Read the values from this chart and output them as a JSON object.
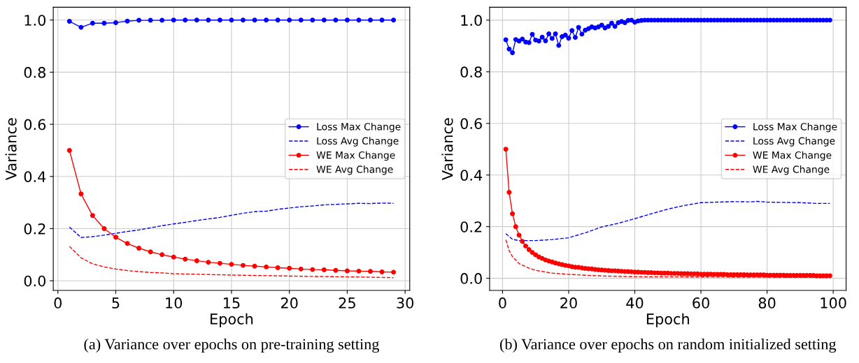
{
  "chart_data": [
    {
      "type": "line",
      "xlabel": "Epoch",
      "ylabel": "Variance",
      "xlim": [
        -0.4,
        30.4
      ],
      "xticks": [
        0,
        5,
        10,
        15,
        20,
        25,
        30
      ],
      "ylim": [
        -0.037,
        1.049
      ],
      "yticks": [
        {
          "value": 0,
          "label": "0.0"
        },
        {
          "value": 0.2,
          "label": "0.2"
        },
        {
          "value": 0.4,
          "label": "0.4"
        },
        {
          "value": 0.6,
          "label": "0.6"
        },
        {
          "value": 0.8,
          "label": "0.8"
        },
        {
          "value": 1,
          "label": "1.0"
        }
      ],
      "grid": true,
      "legend": "right",
      "annotations": [
        "(a) Variance over epochs on pre-training setting"
      ],
      "series": [
        {
          "name": "Loss Max Change",
          "color": "#0000ff",
          "marker": "circle",
          "line_style": "solid",
          "x": [
            1,
            2,
            3,
            4,
            5,
            6,
            7,
            8,
            9,
            10,
            11,
            12,
            13,
            14,
            15,
            16,
            17,
            18,
            19,
            20,
            21,
            22,
            23,
            24,
            25,
            26,
            27,
            28,
            29
          ],
          "values": [
            0.995,
            0.972,
            0.988,
            0.988,
            0.99,
            0.996,
            0.999,
            0.999,
            0.999,
            1,
            1,
            1,
            1,
            1,
            1,
            1,
            1,
            1,
            1,
            1,
            1,
            1,
            1,
            1,
            1,
            1,
            1,
            1,
            1
          ]
        },
        {
          "name": "Loss Avg Change",
          "color": "#0000ff",
          "marker": "none",
          "line_style": "dashed",
          "x": [
            1,
            2,
            3,
            4,
            5,
            6,
            7,
            8,
            9,
            10,
            11,
            12,
            13,
            14,
            15,
            16,
            17,
            18,
            19,
            20,
            21,
            22,
            23,
            24,
            25,
            26,
            27,
            28,
            29
          ],
          "values": [
            0.206,
            0.166,
            0.169,
            0.175,
            0.182,
            0.189,
            0.195,
            0.203,
            0.211,
            0.218,
            0.224,
            0.231,
            0.237,
            0.243,
            0.251,
            0.259,
            0.265,
            0.267,
            0.274,
            0.279,
            0.284,
            0.287,
            0.291,
            0.293,
            0.295,
            0.297,
            0.296,
            0.298,
            0.297
          ]
        },
        {
          "name": "WE Max Change",
          "color": "#ff0000",
          "marker": "circle",
          "line_style": "solid",
          "x": [
            1,
            2,
            3,
            4,
            5,
            6,
            7,
            8,
            9,
            10,
            11,
            12,
            13,
            14,
            15,
            16,
            17,
            18,
            19,
            20,
            21,
            22,
            23,
            24,
            25,
            26,
            27,
            28,
            29
          ],
          "values": [
            0.5,
            0.333,
            0.25,
            0.2,
            0.167,
            0.143,
            0.125,
            0.111,
            0.1,
            0.091,
            0.083,
            0.077,
            0.071,
            0.067,
            0.063,
            0.059,
            0.056,
            0.053,
            0.05,
            0.048,
            0.045,
            0.043,
            0.042,
            0.04,
            0.038,
            0.037,
            0.036,
            0.034,
            0.033
          ]
        },
        {
          "name": "WE Avg Change",
          "color": "#ff0000",
          "marker": "none",
          "line_style": "dashed",
          "x": [
            1,
            2,
            3,
            4,
            5,
            6,
            7,
            8,
            9,
            10,
            12,
            15,
            20,
            25,
            29
          ],
          "values": [
            0.132,
            0.088,
            0.065,
            0.053,
            0.045,
            0.039,
            0.035,
            0.032,
            0.03,
            0.027,
            0.025,
            0.022,
            0.018,
            0.015,
            0.012
          ]
        }
      ]
    },
    {
      "type": "line",
      "xlabel": "Epoch",
      "ylabel": "Variance",
      "xlim": [
        -3.9,
        103.9
      ],
      "xticks": [
        0,
        20,
        40,
        60,
        80,
        100
      ],
      "ylim": [
        -0.047,
        1.05
      ],
      "yticks": [
        {
          "value": 0,
          "label": "0.0"
        },
        {
          "value": 0.2,
          "label": "0.2"
        },
        {
          "value": 0.4,
          "label": "0.4"
        },
        {
          "value": 0.6,
          "label": "0.6"
        },
        {
          "value": 0.8,
          "label": "0.8"
        },
        {
          "value": 1,
          "label": "1.0"
        }
      ],
      "grid": true,
      "legend": "right",
      "annotations": [
        "(b) Variance over epochs on random initialized setting"
      ],
      "series": [
        {
          "name": "Loss Max Change",
          "color": "#0000ff",
          "marker": "circle",
          "line_style": "solid",
          "x": [
            1,
            2,
            3,
            4,
            5,
            6,
            7,
            8,
            9,
            10,
            11,
            12,
            13,
            14,
            15,
            16,
            17,
            18,
            19,
            20,
            21,
            22,
            23,
            24,
            25,
            26,
            27,
            28,
            29,
            30,
            31,
            32,
            33,
            34,
            35,
            36,
            37,
            38,
            39,
            40,
            41,
            42,
            43,
            44,
            45,
            46,
            47,
            48,
            49,
            50,
            51,
            52,
            53,
            54,
            55,
            56,
            57,
            58,
            59,
            60,
            61,
            62,
            63,
            64,
            65,
            66,
            67,
            68,
            69,
            70,
            71,
            72,
            73,
            74,
            75,
            76,
            77,
            78,
            79,
            80,
            81,
            82,
            83,
            84,
            85,
            86,
            87,
            88,
            89,
            90,
            91,
            92,
            93,
            94,
            95,
            96,
            97,
            98,
            99
          ],
          "values": [
            0.924,
            0.888,
            0.874,
            0.925,
            0.919,
            0.927,
            0.915,
            0.913,
            0.945,
            0.923,
            0.919,
            0.934,
            0.92,
            0.947,
            0.929,
            0.947,
            0.902,
            0.936,
            0.942,
            0.93,
            0.96,
            0.933,
            0.972,
            0.946,
            0.961,
            0.967,
            0.974,
            0.97,
            0.974,
            0.981,
            0.97,
            0.976,
            0.988,
            0.976,
            0.99,
            0.995,
            0.99,
            0.999,
            1,
            0.992,
            0.997,
            0.999,
            1,
            1,
            1,
            1,
            1,
            1,
            1,
            1,
            1,
            1,
            1,
            1,
            1,
            1,
            1,
            1,
            1,
            1,
            1,
            1,
            1,
            1,
            1,
            1,
            1,
            1,
            1,
            1,
            1,
            1,
            1,
            1,
            1,
            1,
            1,
            1,
            1,
            1,
            1,
            1,
            1,
            1,
            1,
            1,
            1,
            1,
            1,
            1,
            1,
            1,
            1,
            1,
            1,
            1,
            1,
            1,
            1
          ]
        },
        {
          "name": "Loss Avg Change",
          "color": "#0000ff",
          "marker": "none",
          "line_style": "dashed",
          "x": [
            1,
            3,
            5,
            10,
            15,
            20,
            25,
            30,
            35,
            40,
            45,
            50,
            55,
            60,
            65,
            70,
            75,
            77,
            80,
            85,
            90,
            95,
            99
          ],
          "values": [
            0.173,
            0.151,
            0.146,
            0.146,
            0.15,
            0.157,
            0.176,
            0.199,
            0.213,
            0.231,
            0.25,
            0.268,
            0.282,
            0.293,
            0.295,
            0.297,
            0.296,
            0.298,
            0.295,
            0.294,
            0.293,
            0.29,
            0.29
          ]
        },
        {
          "name": "WE Max Change",
          "color": "#ff0000",
          "marker": "circle",
          "line_style": "solid",
          "x": [
            1,
            2,
            3,
            4,
            5,
            6,
            7,
            8,
            9,
            10,
            11,
            12,
            13,
            14,
            15,
            16,
            17,
            18,
            19,
            20,
            21,
            22,
            23,
            24,
            25,
            26,
            27,
            28,
            29,
            30,
            31,
            32,
            33,
            34,
            35,
            36,
            37,
            38,
            39,
            40,
            41,
            42,
            43,
            44,
            45,
            46,
            47,
            48,
            49,
            50,
            51,
            52,
            53,
            54,
            55,
            56,
            57,
            58,
            59,
            60,
            61,
            62,
            63,
            64,
            65,
            66,
            67,
            68,
            69,
            70,
            71,
            72,
            73,
            74,
            75,
            76,
            77,
            78,
            79,
            80,
            81,
            82,
            83,
            84,
            85,
            86,
            87,
            88,
            89,
            90,
            91,
            92,
            93,
            94,
            95,
            96,
            97,
            98,
            99
          ],
          "values": [
            0.5,
            0.333,
            0.25,
            0.2,
            0.167,
            0.143,
            0.125,
            0.111,
            0.1,
            0.091,
            0.083,
            0.077,
            0.071,
            0.067,
            0.063,
            0.059,
            0.056,
            0.053,
            0.05,
            0.048,
            0.045,
            0.043,
            0.042,
            0.04,
            0.038,
            0.037,
            0.036,
            0.034,
            0.033,
            0.032,
            0.031,
            0.03,
            0.029,
            0.029,
            0.028,
            0.027,
            0.026,
            0.026,
            0.025,
            0.024,
            0.024,
            0.023,
            0.023,
            0.022,
            0.022,
            0.021,
            0.021,
            0.02,
            0.02,
            0.02,
            0.019,
            0.019,
            0.019,
            0.018,
            0.018,
            0.018,
            0.017,
            0.017,
            0.017,
            0.016,
            0.016,
            0.016,
            0.016,
            0.015,
            0.015,
            0.015,
            0.015,
            0.014,
            0.014,
            0.014,
            0.014,
            0.014,
            0.014,
            0.013,
            0.013,
            0.013,
            0.013,
            0.013,
            0.013,
            0.012,
            0.012,
            0.012,
            0.012,
            0.012,
            0.012,
            0.011,
            0.011,
            0.011,
            0.011,
            0.011,
            0.011,
            0.011,
            0.011,
            0.011,
            0.01,
            0.01,
            0.01,
            0.01,
            0.01
          ]
        },
        {
          "name": "WE Avg Change",
          "color": "#ff0000",
          "marker": "none",
          "line_style": "dashed",
          "x": [
            1,
            2,
            3,
            5,
            8,
            10,
            15,
            20,
            30,
            40,
            60,
            80,
            99
          ],
          "values": [
            0.149,
            0.107,
            0.084,
            0.057,
            0.039,
            0.031,
            0.02,
            0.015,
            0.009,
            0.006,
            0.005,
            0.004,
            0.003
          ]
        }
      ]
    }
  ]
}
